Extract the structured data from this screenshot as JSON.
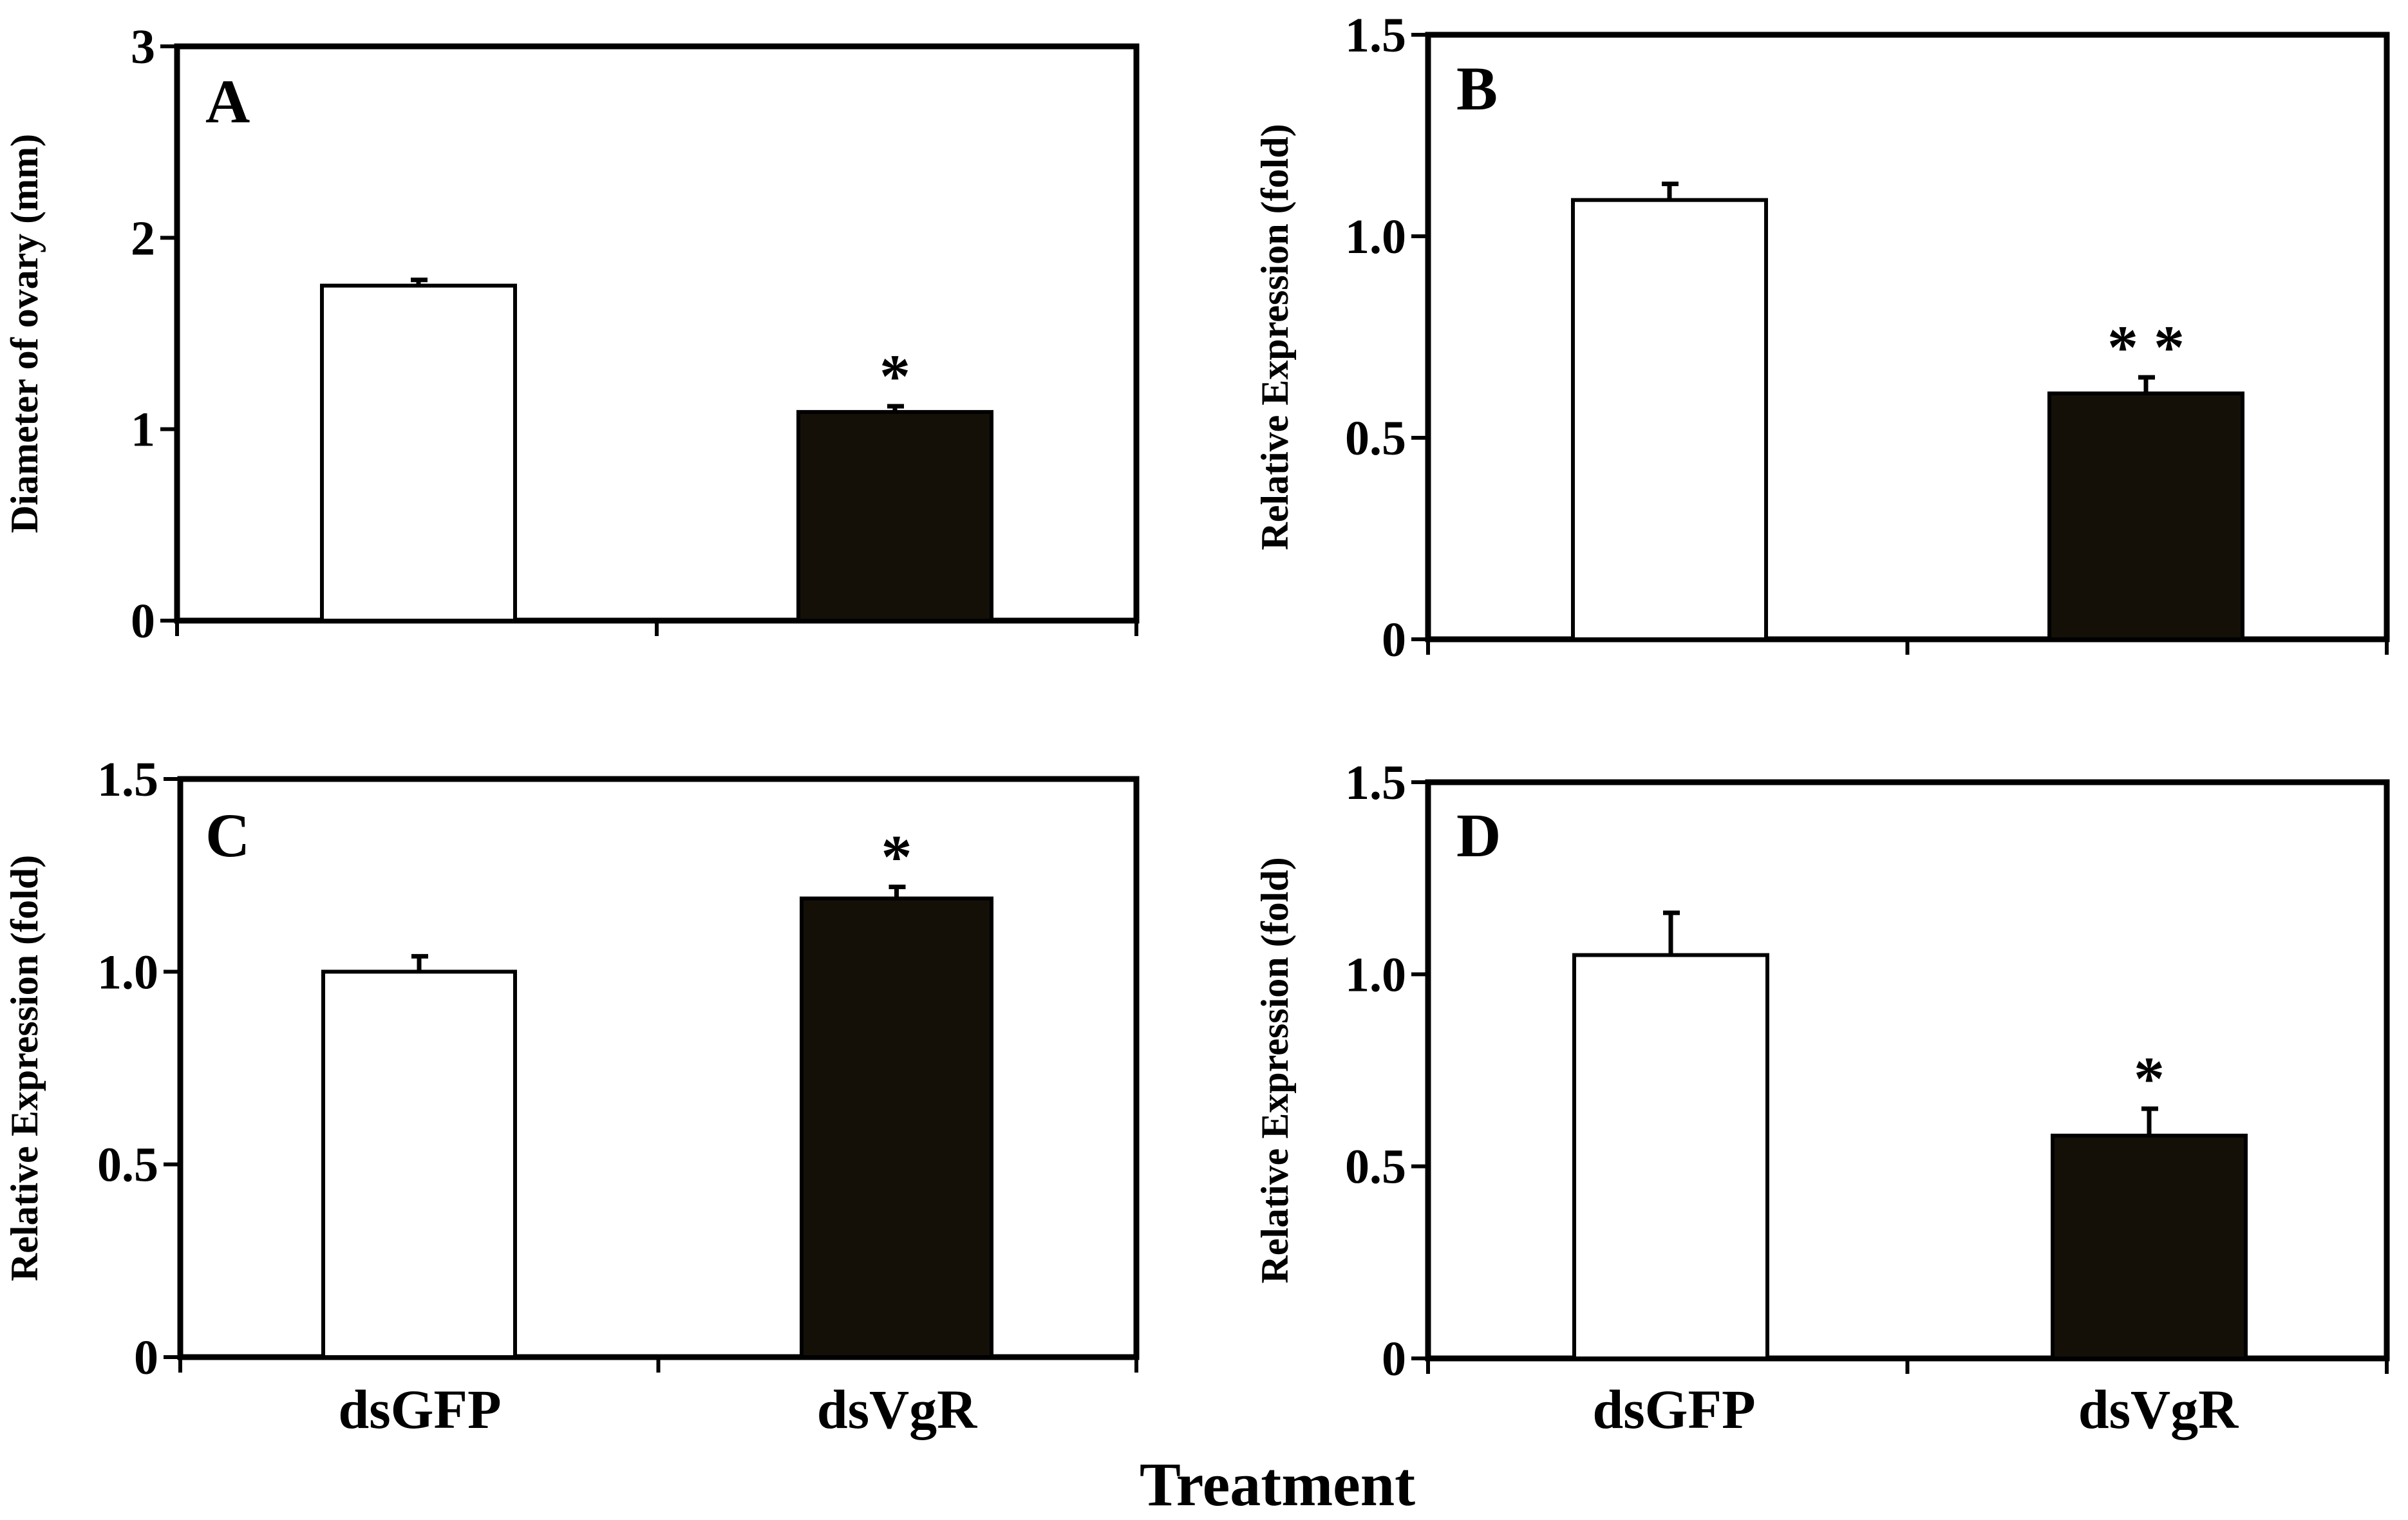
{
  "figure": {
    "shared_xlabel": "Treatment",
    "bottom_categories": [
      "dsGFP",
      "dsVgR"
    ]
  },
  "chart_data": [
    {
      "panel": "A",
      "type": "bar",
      "categories": [
        "dsGFP",
        "dsVgR"
      ],
      "values": [
        1.75,
        1.09
      ],
      "errors": [
        0.03,
        0.03
      ],
      "significance": [
        "",
        "*"
      ],
      "bar_colors": [
        "#ffffff",
        "#141008"
      ],
      "ylabel": "Diameter of ovary (mm)",
      "ylim": [
        0,
        3
      ],
      "yticks": [
        0,
        1,
        2,
        3
      ],
      "ytick_labels": [
        "0",
        "1",
        "2",
        "3"
      ],
      "grid": false
    },
    {
      "panel": "B",
      "type": "bar",
      "categories": [
        "dsGFP",
        "dsVgR"
      ],
      "values": [
        1.09,
        0.61
      ],
      "errors": [
        0.04,
        0.04
      ],
      "significance": [
        "",
        "**"
      ],
      "bar_colors": [
        "#ffffff",
        "#141008"
      ],
      "ylabel": "Relative Expression (fold)",
      "ylim": [
        0,
        1.5
      ],
      "yticks": [
        0,
        0.5,
        1.0,
        1.5
      ],
      "ytick_labels": [
        "0",
        "0.5",
        "1.0",
        "1.5"
      ],
      "grid": false
    },
    {
      "panel": "C",
      "type": "bar",
      "categories": [
        "dsGFP",
        "dsVgR"
      ],
      "values": [
        1.0,
        1.19
      ],
      "errors": [
        0.04,
        0.03
      ],
      "significance": [
        "",
        "*"
      ],
      "bar_colors": [
        "#ffffff",
        "#141008"
      ],
      "ylabel": "Relative Expression (fold)",
      "ylim": [
        0,
        1.5
      ],
      "yticks": [
        0,
        0.5,
        1.0,
        1.5
      ],
      "ytick_labels": [
        "0",
        "0.5",
        "1.0",
        "1.5"
      ],
      "grid": false
    },
    {
      "panel": "D",
      "type": "bar",
      "categories": [
        "dsGFP",
        "dsVgR"
      ],
      "values": [
        1.05,
        0.58
      ],
      "errors": [
        0.11,
        0.07
      ],
      "significance": [
        "",
        "*"
      ],
      "bar_colors": [
        "#ffffff",
        "#141008"
      ],
      "ylabel": "Relative Expression (fold)",
      "ylim": [
        0,
        1.5
      ],
      "yticks": [
        0,
        0.5,
        1.0,
        1.5
      ],
      "ytick_labels": [
        "0",
        "0.5",
        "1.0",
        "1.5"
      ],
      "grid": false
    }
  ]
}
